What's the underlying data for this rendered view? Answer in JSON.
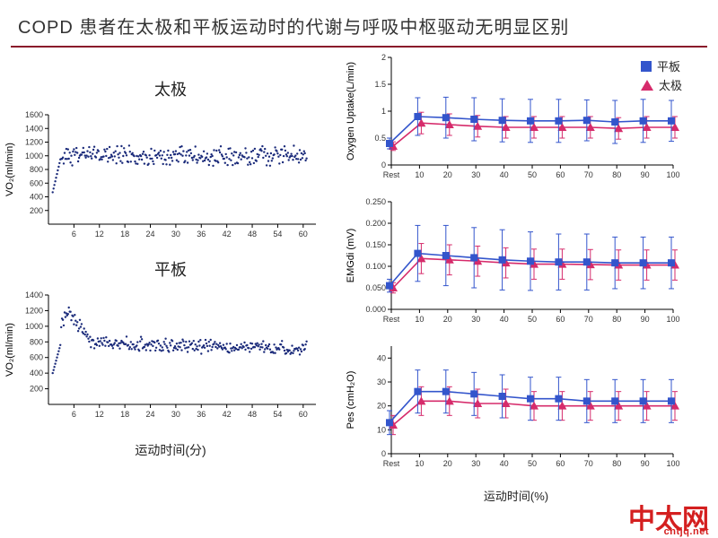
{
  "title": "COPD 患者在太极和平板运动时的代谢与呼吸中枢驱动无明显区别",
  "rule_color": "#8a1a2a",
  "left": {
    "panels": [
      {
        "label": "太极",
        "id": "taiji"
      },
      {
        "label": "平板",
        "id": "treadmill"
      }
    ],
    "xlabel": "运动时间(分)",
    "ylabel": "VO₂(ml/min)",
    "x_ticks": [
      6,
      12,
      18,
      24,
      30,
      36,
      42,
      48,
      54,
      60
    ],
    "taiji": {
      "y_ticks": [
        200,
        400,
        600,
        800,
        1000,
        1200,
        1400,
        1600
      ],
      "ylim": [
        0,
        1600
      ],
      "baseline": 1000,
      "noise_amp": 180,
      "drift": 0,
      "start_val": 200,
      "color": "#1a2a7a",
      "point_r": 1.2
    },
    "treadmill": {
      "y_ticks": [
        200,
        400,
        600,
        800,
        1000,
        1200,
        1400
      ],
      "ylim": [
        0,
        1400
      ],
      "baseline": 800,
      "noise_amp": 120,
      "drift": -1.5,
      "peak_t": 5,
      "peak_val": 1200,
      "start_val": 200,
      "color": "#1a2a7a",
      "point_r": 1.2
    },
    "xlim": [
      0,
      63
    ]
  },
  "right": {
    "xlabel": "运动时间(%)",
    "x_ticks_labels": [
      "Rest",
      "10",
      "20",
      "30",
      "40",
      "50",
      "60",
      "70",
      "80",
      "90",
      "100"
    ],
    "x_positions": [
      0,
      10,
      20,
      30,
      40,
      50,
      60,
      70,
      80,
      90,
      100
    ],
    "legend": [
      {
        "label": "平板",
        "marker": "square",
        "color": "#3355cc"
      },
      {
        "label": "太极",
        "marker": "triangle",
        "color": "#d62b6b"
      }
    ],
    "panels": [
      {
        "id": "o2",
        "ylabel": "Oxygen Uptake(L/min)",
        "ylim": [
          0,
          2.0
        ],
        "y_ticks": [
          0,
          0.5,
          1.0,
          1.5,
          2.0
        ],
        "blue": {
          "color": "#3355cc",
          "marker": "square",
          "y": [
            0.4,
            0.9,
            0.88,
            0.85,
            0.83,
            0.82,
            0.82,
            0.83,
            0.8,
            0.82,
            0.82
          ],
          "err": [
            0.1,
            0.35,
            0.38,
            0.4,
            0.4,
            0.4,
            0.4,
            0.38,
            0.4,
            0.4,
            0.38
          ]
        },
        "pink": {
          "color": "#d62b6b",
          "marker": "triangle",
          "y": [
            0.35,
            0.78,
            0.75,
            0.72,
            0.7,
            0.7,
            0.7,
            0.7,
            0.68,
            0.7,
            0.7
          ],
          "err": [
            0.08,
            0.2,
            0.2,
            0.2,
            0.2,
            0.2,
            0.2,
            0.2,
            0.2,
            0.2,
            0.2
          ]
        }
      },
      {
        "id": "emg",
        "ylabel": "EMGdi (mV)",
        "ylim": [
          0,
          0.25
        ],
        "y_ticks": [
          0,
          0.05,
          0.1,
          0.15,
          0.2,
          0.25
        ],
        "y_tick_fmt": 3,
        "blue": {
          "color": "#3355cc",
          "marker": "square",
          "y": [
            0.055,
            0.13,
            0.125,
            0.12,
            0.115,
            0.112,
            0.11,
            0.11,
            0.108,
            0.108,
            0.108
          ],
          "err": [
            0.015,
            0.065,
            0.07,
            0.07,
            0.07,
            0.068,
            0.065,
            0.065,
            0.06,
            0.06,
            0.06
          ]
        },
        "pink": {
          "color": "#d62b6b",
          "marker": "triangle",
          "y": [
            0.05,
            0.118,
            0.115,
            0.112,
            0.108,
            0.105,
            0.105,
            0.104,
            0.103,
            0.103,
            0.103
          ],
          "err": [
            0.012,
            0.035,
            0.035,
            0.035,
            0.035,
            0.035,
            0.035,
            0.035,
            0.035,
            0.035,
            0.035
          ]
        }
      },
      {
        "id": "pes",
        "ylabel": "Pes  (cmH₂O)",
        "ylim": [
          0,
          45
        ],
        "y_ticks": [
          0,
          10,
          20,
          30,
          40
        ],
        "blue": {
          "color": "#3355cc",
          "marker": "square",
          "y": [
            13,
            26,
            26,
            25,
            24,
            23,
            23,
            22,
            22,
            22,
            22
          ],
          "err": [
            5,
            9,
            9,
            9,
            9,
            9,
            9,
            9,
            9,
            9,
            9
          ]
        },
        "pink": {
          "color": "#d62b6b",
          "marker": "triangle",
          "y": [
            12,
            22,
            22,
            21,
            21,
            20,
            20,
            20,
            20,
            20,
            20
          ],
          "err": [
            4,
            6,
            6,
            6,
            6,
            6,
            6,
            6,
            6,
            6,
            6
          ]
        }
      }
    ]
  },
  "watermark": {
    "main": "中太网",
    "sub": "cntjq.net"
  }
}
